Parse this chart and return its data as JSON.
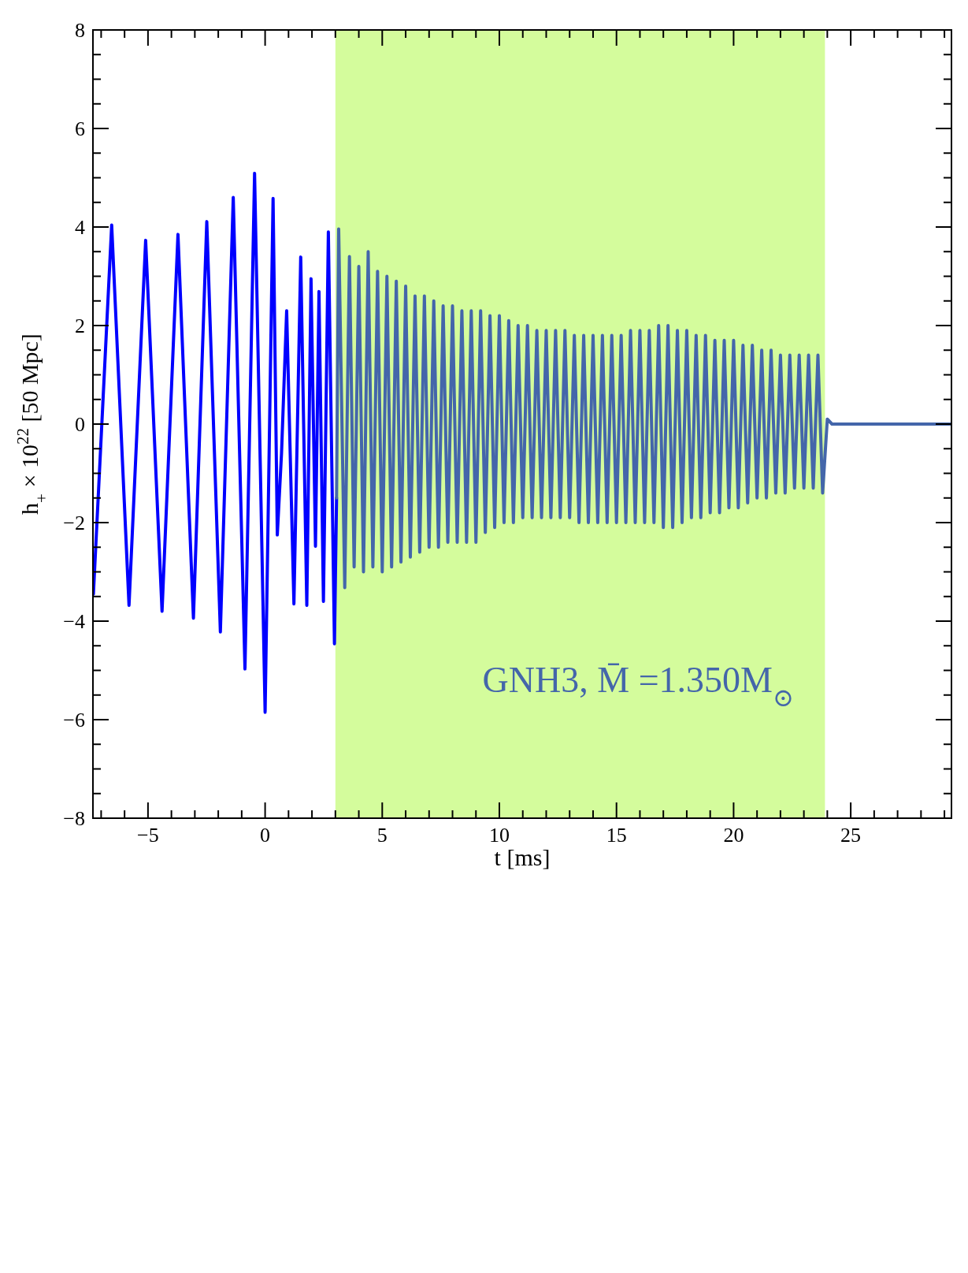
{
  "chart_data": {
    "type": "line",
    "xlabel": "t [ms]",
    "ylabel": "h$_{+}$ × 10$^{22}$ [50 Mpc]",
    "annotations": [
      "GNH3, M̄ =1.350M$_{⊙}$"
    ],
    "xlim": [
      -7.35,
      29.3
    ],
    "ylim": [
      -8,
      8
    ],
    "xticks": [
      {
        "value": -7,
        "label": null
      },
      {
        "value": -6,
        "label": null
      },
      {
        "value": -5,
        "label": "−5"
      },
      {
        "value": -4,
        "label": null
      },
      {
        "value": -3,
        "label": null
      },
      {
        "value": -2,
        "label": null
      },
      {
        "value": -1,
        "label": null
      },
      0,
      {
        "value": 1,
        "label": null
      },
      {
        "value": 2,
        "label": null
      },
      {
        "value": 3,
        "label": null
      },
      {
        "value": 4,
        "label": null
      },
      5,
      {
        "value": 6,
        "label": null
      },
      {
        "value": 7,
        "label": null
      },
      {
        "value": 8,
        "label": null
      },
      {
        "value": 9,
        "label": null
      },
      10,
      {
        "value": 11,
        "label": null
      },
      {
        "value": 12,
        "label": null
      },
      {
        "value": 13,
        "label": null
      },
      {
        "value": 14,
        "label": null
      },
      15,
      {
        "value": 16,
        "label": null
      },
      {
        "value": 17,
        "label": null
      },
      {
        "value": 18,
        "label": null
      },
      {
        "value": 19,
        "label": null
      },
      20,
      {
        "value": 21,
        "label": null
      },
      {
        "value": 22,
        "label": null
      },
      {
        "value": 23,
        "label": null
      },
      {
        "value": 24,
        "label": null
      },
      25,
      {
        "value": 26,
        "label": null
      },
      {
        "value": 27,
        "label": null
      },
      {
        "value": 28,
        "label": null
      },
      {
        "value": 29,
        "label": null
      }
    ],
    "yticks": [
      {
        "value": -8,
        "label": "−8"
      },
      {
        "value": -7.5,
        "label": null
      },
      {
        "value": -7,
        "label": null
      },
      {
        "value": -6.5,
        "label": null
      },
      {
        "value": -6,
        "label": "−6"
      },
      {
        "value": -5.5,
        "label": null
      },
      {
        "value": -5,
        "label": null
      },
      {
        "value": -4.5,
        "label": null
      },
      {
        "value": -4,
        "label": "−4"
      },
      {
        "value": -3.5,
        "label": null
      },
      {
        "value": -3,
        "label": null
      },
      {
        "value": -2.5,
        "label": null
      },
      {
        "value": -2,
        "label": "−2"
      },
      {
        "value": -1.5,
        "label": null
      },
      {
        "value": -1,
        "label": null
      },
      {
        "value": -0.5,
        "label": null
      },
      0,
      {
        "value": 0.5,
        "label": null
      },
      {
        "value": 1,
        "label": null
      },
      {
        "value": 1.5,
        "label": null
      },
      2,
      {
        "value": 2.5,
        "label": null
      },
      {
        "value": 3,
        "label": null
      },
      {
        "value": 3.5,
        "label": null
      },
      4,
      {
        "value": 4.5,
        "label": null
      },
      {
        "value": 5,
        "label": null
      },
      {
        "value": 5.5,
        "label": null
      },
      6,
      {
        "value": 6.5,
        "label": null
      },
      {
        "value": 7,
        "label": null
      },
      {
        "value": 7.5,
        "label": null
      },
      8
    ],
    "grid": false,
    "line_style": "solid",
    "marker": "none",
    "bands": [
      {
        "axis": "x",
        "from": 3,
        "to": 23.9,
        "color": "#d4fc9c"
      }
    ],
    "series": [
      {
        "color": "#0000ff",
        "x": [
          -7.33,
          -6.55,
          -5.81,
          -5.1,
          -4.4,
          -3.72,
          -3.06,
          -2.49,
          -1.91,
          -1.36,
          -0.86,
          -0.45,
          0,
          0.34,
          0.52,
          0.7,
          0.92,
          1.23,
          1.52,
          1.78,
          1.96,
          2.15,
          2.3,
          2.49,
          2.7,
          2.96,
          3.05
        ],
        "values": [
          -3.45,
          4.04,
          -3.68,
          3.73,
          -3.8,
          3.85,
          -3.94,
          4.11,
          -4.22,
          4.6,
          -4.97,
          5.09,
          -5.85,
          4.58,
          -2.25,
          -0.6,
          2.3,
          -3.65,
          3.39,
          -3.68,
          2.95,
          -2.48,
          2.69,
          -3.6,
          3.9,
          -4.46,
          -1.5
        ]
      },
      {
        "color": "#4466aa",
        "x": [
          3.05,
          3.14,
          3.4,
          3.6,
          3.8,
          4.0,
          4.2,
          4.4,
          4.6,
          4.8,
          5.0,
          5.2,
          5.4,
          5.6,
          5.8,
          6.0,
          6.2,
          6.4,
          6.6,
          6.8,
          7.0,
          7.2,
          7.4,
          7.6,
          7.8,
          8.0,
          8.2,
          8.4,
          8.6,
          8.8,
          9.0,
          9.2,
          9.4,
          9.6,
          9.8,
          10.0,
          10.2,
          10.4,
          10.6,
          10.8,
          11.0,
          11.2,
          11.4,
          11.6,
          11.8,
          12.0,
          12.2,
          12.4,
          12.6,
          12.8,
          13.0,
          13.2,
          13.4,
          13.6,
          13.8,
          14.0,
          14.2,
          14.4,
          14.6,
          14.8,
          15.0,
          15.2,
          15.4,
          15.6,
          15.8,
          16.0,
          16.2,
          16.4,
          16.6,
          16.8,
          17.0,
          17.2,
          17.4,
          17.6,
          17.8,
          18.0,
          18.2,
          18.4,
          18.6,
          18.8,
          19.0,
          19.2,
          19.4,
          19.6,
          19.8,
          20.0,
          20.2,
          20.4,
          20.6,
          20.8,
          21.0,
          21.2,
          21.4,
          21.6,
          21.8,
          22.0,
          22.2,
          22.4,
          22.6,
          22.8,
          23.0,
          23.2,
          23.4,
          23.6,
          23.8,
          24.0,
          24.2,
          24.5,
          29.3
        ],
        "values": [
          -1.5,
          3.96,
          -3.32,
          3.4,
          -2.9,
          3.2,
          -3.0,
          3.5,
          -2.9,
          3.1,
          -3.0,
          3.0,
          -2.9,
          2.9,
          -2.8,
          2.8,
          -2.7,
          2.6,
          -2.6,
          2.6,
          -2.5,
          2.5,
          -2.5,
          2.4,
          -2.4,
          2.4,
          -2.4,
          2.3,
          -2.4,
          2.3,
          -2.4,
          2.3,
          -2.2,
          2.2,
          -2.1,
          2.2,
          -2.0,
          2.1,
          -2.0,
          2.0,
          -1.9,
          2.0,
          -1.9,
          1.9,
          -1.9,
          1.9,
          -1.9,
          1.9,
          -1.9,
          1.9,
          -1.9,
          1.8,
          -2.0,
          1.8,
          -2.0,
          1.8,
          -2.0,
          1.8,
          -2.0,
          1.8,
          -2.0,
          1.8,
          -2.0,
          1.9,
          -2.0,
          1.9,
          -2.0,
          1.9,
          -2.0,
          2.0,
          -2.1,
          2.0,
          -2.1,
          1.9,
          -2.0,
          1.9,
          -1.9,
          1.8,
          -1.9,
          1.8,
          -1.8,
          1.7,
          -1.8,
          1.7,
          -1.7,
          1.7,
          -1.7,
          1.6,
          -1.6,
          1.6,
          -1.5,
          1.5,
          -1.5,
          1.5,
          -1.4,
          1.4,
          -1.4,
          1.4,
          -1.3,
          1.4,
          -1.3,
          1.4,
          -1.3,
          1.4,
          -1.4,
          0.1,
          0,
          0,
          0
        ]
      }
    ]
  }
}
